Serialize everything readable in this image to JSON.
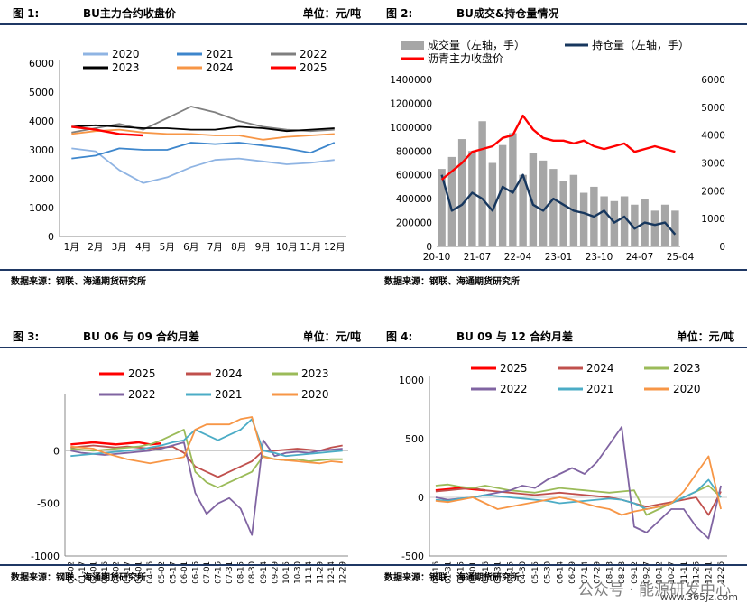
{
  "panels": {
    "p1": {
      "fig": "图 1:",
      "title": "BU主力合约收盘价",
      "unit": "单位：元/吨",
      "source": "数据来源：钢联、海通期货研究所"
    },
    "p2": {
      "fig": "图 2:",
      "title": "BU成交&持仓量情况",
      "unit": "",
      "source": "数据来源：钢联、海通期货研究所"
    },
    "p3": {
      "fig": "图 3:",
      "title": "BU 06 与 09 合约月差",
      "unit": "单位：元/吨",
      "source": "数据来源：钢联、海通期货研究所"
    },
    "p4": {
      "fig": "图 4:",
      "title": "BU 09 与 12 合约月差",
      "unit": "单位：元/吨",
      "source": "数据来源：钢联、海通期货研究所"
    }
  },
  "watermark": "公众号 · 能源研发中心",
  "watermark2": "www.365jz.com",
  "chart_data": [
    {
      "id": "c1",
      "type": "line",
      "title": "BU主力合约收盘价",
      "ylabel": "单位：元/吨",
      "ylim": [
        0,
        6000
      ],
      "yticks": [
        0,
        1000,
        2000,
        3000,
        4000,
        5000,
        6000
      ],
      "categories": [
        "1月",
        "2月",
        "3月",
        "4月",
        "5月",
        "6月",
        "7月",
        "8月",
        "9月",
        "10月",
        "11月",
        "12月"
      ],
      "legend_position": "top",
      "series": [
        {
          "name": "2020",
          "color": "#8fb4e3",
          "values": [
            3050,
            2950,
            2300,
            1850,
            2050,
            2400,
            2650,
            2700,
            2600,
            2500,
            2550,
            2650
          ]
        },
        {
          "name": "2021",
          "color": "#3d86cc",
          "values": [
            2700,
            2800,
            3050,
            3000,
            3000,
            3250,
            3200,
            3250,
            3150,
            3050,
            2900,
            3250
          ]
        },
        {
          "name": "2022",
          "color": "#7f7f7f",
          "values": [
            3600,
            3750,
            3900,
            3700,
            4100,
            4500,
            4300,
            4000,
            3800,
            3700,
            3650,
            3700
          ]
        },
        {
          "name": "2023",
          "color": "#000000",
          "values": [
            3800,
            3850,
            3800,
            3750,
            3750,
            3700,
            3700,
            3800,
            3750,
            3650,
            3700,
            3750
          ]
        },
        {
          "name": "2024",
          "color": "#f79646",
          "values": [
            3550,
            3650,
            3700,
            3600,
            3550,
            3550,
            3500,
            3500,
            3350,
            3450,
            3500,
            3550
          ]
        },
        {
          "name": "2025",
          "color": "#ff0000",
          "values": [
            3800,
            3700,
            3550,
            3500,
            null,
            null,
            null,
            null,
            null,
            null,
            null,
            null
          ]
        }
      ]
    },
    {
      "id": "c2",
      "type": "bar+line",
      "title": "BU成交&持仓量情况",
      "ylim_left": [
        0,
        1400000
      ],
      "ylim_right": [
        0,
        6000
      ],
      "yticks_left": [
        0,
        200000,
        400000,
        600000,
        800000,
        1000000,
        1200000,
        1400000
      ],
      "yticks_right": [
        0,
        1000,
        2000,
        3000,
        4000,
        5000,
        6000
      ],
      "x_ticks": [
        "20-10",
        "21-07",
        "22-04",
        "23-01",
        "23-10",
        "24-07",
        "25-04"
      ],
      "legend_position": "top",
      "series": [
        {
          "name": "成交量（左轴，手）",
          "color": "#a6a6a6",
          "axis": "left",
          "style": "bar",
          "values": [
            650000,
            750000,
            900000,
            800000,
            1050000,
            700000,
            850000,
            950000,
            600000,
            780000,
            720000,
            650000,
            550000,
            600000,
            450000,
            500000,
            420000,
            380000,
            420000,
            350000,
            400000,
            300000,
            350000,
            300000
          ]
        },
        {
          "name": "持仓量（左轴，手）",
          "color": "#17375e",
          "axis": "left",
          "style": "line",
          "values": [
            600000,
            300000,
            350000,
            450000,
            400000,
            300000,
            500000,
            450000,
            600000,
            350000,
            300000,
            400000,
            350000,
            300000,
            280000,
            250000,
            300000,
            200000,
            250000,
            150000,
            200000,
            180000,
            200000,
            100000
          ]
        },
        {
          "name": "沥青主力收盘价",
          "color": "#ff0000",
          "axis": "right",
          "style": "line",
          "values": [
            2400,
            2700,
            3000,
            3400,
            3500,
            3600,
            3900,
            4000,
            4700,
            4200,
            3900,
            3800,
            3800,
            3700,
            3800,
            3600,
            3500,
            3600,
            3700,
            3400,
            3500,
            3600,
            3500,
            3400
          ]
        }
      ]
    },
    {
      "id": "c3",
      "type": "line",
      "title": "BU 06 与 09 合约月差",
      "ylabel": "单位：元/吨",
      "ylim": [
        -1000,
        500
      ],
      "yticks": [
        -1000,
        -500,
        0
      ],
      "categories": [
        "01-02",
        "01-17",
        "02-01",
        "02-16",
        "03-02",
        "03-17",
        "04-01",
        "04-16",
        "05-02",
        "05-17",
        "06-01",
        "06-16",
        "07-01",
        "07-16",
        "07-31",
        "08-15",
        "08-30",
        "09-14",
        "09-29",
        "10-15",
        "10-30",
        "11-14",
        "11-29",
        "12-14",
        "12-29"
      ],
      "x_ticks": [
        "01-02",
        "01-17",
        "02-01",
        "02-16",
        "03-02",
        "03-17",
        "04-01",
        "04-16",
        "05-02",
        "05-17",
        "06-01",
        "06-16",
        "07-01",
        "07-16",
        "07-31",
        "08-15",
        "08-30",
        "09-14",
        "09-29",
        "10-15",
        "10-30",
        "11-14",
        "11-29",
        "12-14",
        "12-29"
      ],
      "legend_position": "top",
      "series": [
        {
          "name": "2025",
          "color": "#ff0000",
          "values": [
            60,
            70,
            80,
            70,
            60,
            70,
            80,
            60,
            70,
            null,
            null,
            null,
            null,
            null,
            null,
            null,
            null,
            null,
            null,
            null,
            null,
            null,
            null,
            null,
            null
          ]
        },
        {
          "name": "2024",
          "color": "#c0504d",
          "values": [
            30,
            40,
            50,
            40,
            30,
            40,
            30,
            20,
            30,
            40,
            -20,
            -150,
            -200,
            -250,
            -200,
            -150,
            -100,
            0,
            0,
            10,
            20,
            10,
            0,
            30,
            50
          ]
        },
        {
          "name": "2023",
          "color": "#9bbb59",
          "values": [
            20,
            10,
            0,
            10,
            20,
            30,
            40,
            60,
            100,
            150,
            200,
            -200,
            -300,
            -350,
            -300,
            -250,
            -200,
            -50,
            -80,
            -90,
            -80,
            -100,
            -90,
            -80,
            -80
          ]
        },
        {
          "name": "2022",
          "color": "#8064a2",
          "values": [
            0,
            -20,
            -30,
            -40,
            -30,
            -20,
            -10,
            0,
            20,
            50,
            80,
            -400,
            -600,
            -500,
            -450,
            -550,
            -800,
            100,
            -50,
            -20,
            -10,
            -20,
            0,
            10,
            20
          ]
        },
        {
          "name": "2021",
          "color": "#4bacc6",
          "values": [
            -50,
            -40,
            -30,
            -20,
            -10,
            0,
            10,
            30,
            50,
            80,
            100,
            200,
            150,
            100,
            150,
            200,
            300,
            0,
            -20,
            -50,
            -40,
            -30,
            -20,
            -10,
            0
          ]
        },
        {
          "name": "2020",
          "color": "#f79646",
          "values": [
            40,
            30,
            20,
            -20,
            -50,
            -80,
            -100,
            -120,
            -100,
            -80,
            -60,
            200,
            250,
            250,
            250,
            300,
            320,
            -60,
            -80,
            -90,
            -100,
            -110,
            -120,
            -100,
            -110
          ]
        }
      ]
    },
    {
      "id": "c4",
      "type": "line",
      "title": "BU 09 与 12 合约月差",
      "ylabel": "单位：元/吨",
      "ylim": [
        -500,
        1000
      ],
      "yticks": [
        -500,
        0,
        500,
        1000
      ],
      "categories": [
        "01-16",
        "01-31",
        "02-15",
        "03-01",
        "03-16",
        "03-31",
        "04-15",
        "04-30",
        "05-15",
        "05-30",
        "06-14",
        "06-29",
        "07-14",
        "07-29",
        "08-13",
        "08-28",
        "09-12",
        "09-27",
        "10-12",
        "10-27",
        "11-11",
        "11-26",
        "12-11",
        "12-26"
      ],
      "x_ticks": [
        "01-16",
        "01-31",
        "02-15",
        "03-01",
        "03-16",
        "03-31",
        "04-15",
        "04-30",
        "05-15",
        "05-30",
        "06-14",
        "06-29",
        "07-14",
        "07-29",
        "08-13",
        "08-28",
        "09-12",
        "09-27",
        "10-12",
        "10-27",
        "11-11",
        "11-26",
        "12-11",
        "12-26"
      ],
      "legend_position": "top",
      "series": [
        {
          "name": "2025",
          "color": "#ff0000",
          "values": [
            60,
            70,
            80,
            70,
            60,
            null,
            null,
            null,
            null,
            null,
            null,
            null,
            null,
            null,
            null,
            null,
            null,
            null,
            null,
            null,
            null,
            null,
            null,
            null
          ]
        },
        {
          "name": "2024",
          "color": "#c0504d",
          "values": [
            50,
            60,
            70,
            80,
            60,
            50,
            40,
            30,
            20,
            30,
            40,
            30,
            20,
            10,
            0,
            -20,
            -50,
            -80,
            -60,
            -40,
            -20,
            0,
            -150,
            50
          ]
        },
        {
          "name": "2023",
          "color": "#9bbb59",
          "values": [
            100,
            110,
            90,
            80,
            100,
            80,
            60,
            50,
            40,
            60,
            80,
            70,
            60,
            50,
            40,
            50,
            60,
            -150,
            -100,
            -50,
            0,
            50,
            100,
            0
          ]
        },
        {
          "name": "2022",
          "color": "#8064a2",
          "values": [
            0,
            -20,
            -10,
            0,
            20,
            40,
            60,
            100,
            80,
            150,
            200,
            250,
            200,
            300,
            450,
            600,
            -250,
            -300,
            -200,
            -100,
            -100,
            -250,
            -350,
            100
          ]
        },
        {
          "name": "2021",
          "color": "#4bacc6",
          "values": [
            -20,
            -30,
            -10,
            0,
            20,
            10,
            0,
            -10,
            -20,
            -30,
            -50,
            -40,
            -30,
            -20,
            -10,
            -20,
            -50,
            -100,
            -80,
            -50,
            0,
            50,
            150,
            0
          ]
        },
        {
          "name": "2020",
          "color": "#f79646",
          "values": [
            -30,
            -40,
            -20,
            0,
            -50,
            -100,
            -80,
            -60,
            -40,
            -20,
            0,
            -20,
            -50,
            -80,
            -100,
            -150,
            -120,
            -100,
            -80,
            -50,
            50,
            200,
            350,
            -100
          ]
        }
      ]
    }
  ]
}
